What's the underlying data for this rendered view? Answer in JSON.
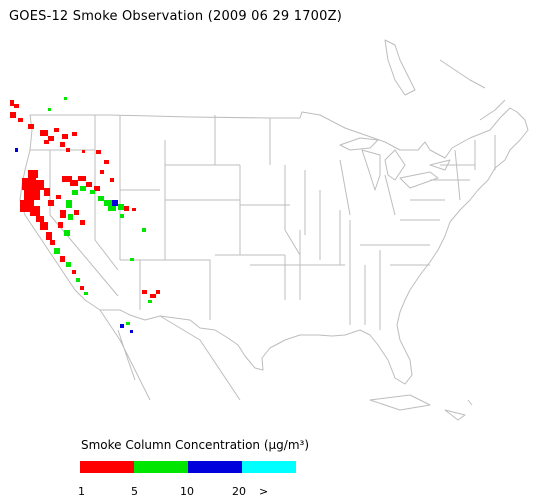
{
  "title": "GOES-12 Smoke Observation (2009 06 29  1700Z)",
  "legend": {
    "title": "Smoke Column Concentration (μg/m³)",
    "colors": [
      "#ff0000",
      "#00e600",
      "#0000dd",
      "#00ffff"
    ],
    "ticks": [
      "1",
      "5",
      "10",
      "20",
      ">"
    ]
  }
}
